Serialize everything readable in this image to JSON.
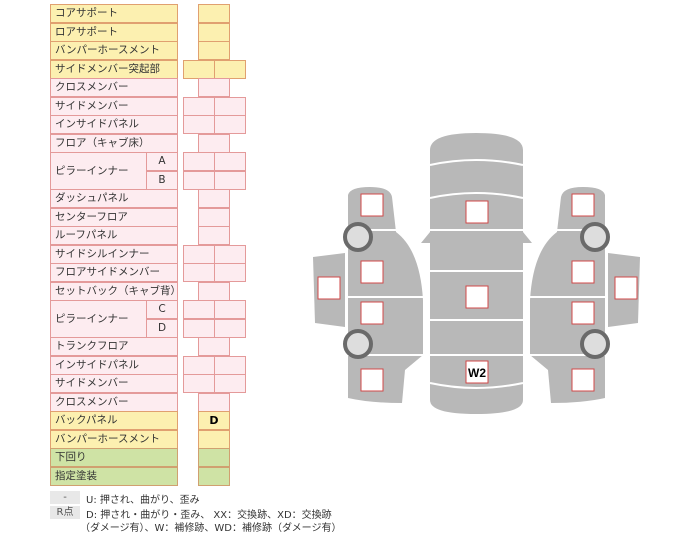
{
  "rows": [
    {
      "label": "コアサポート",
      "color": "y",
      "cols": 1
    },
    {
      "label": "ロアサポート",
      "color": "y",
      "cols": 1
    },
    {
      "label": "バンパーホースメント",
      "color": "y",
      "cols": 1
    },
    {
      "label": "サイドメンバー突起部",
      "color": "y",
      "cols": 2
    },
    {
      "label": "クロスメンバー",
      "color": "p",
      "cols": 1
    },
    {
      "label": "サイドメンバー",
      "color": "p",
      "cols": 2
    },
    {
      "label": "インサイドパネル",
      "color": "p",
      "cols": 2
    },
    {
      "label": "フロア（キャブ床）",
      "color": "p",
      "cols": 1
    },
    {
      "label": "ピラーインナー",
      "sub": "A",
      "color": "p",
      "cols": 2
    },
    {
      "label": "",
      "sub": "B",
      "color": "p",
      "cols": 2
    },
    {
      "label": "ダッシュパネル",
      "color": "p",
      "cols": 1
    },
    {
      "label": "センターフロア",
      "color": "p",
      "cols": 1
    },
    {
      "label": "ルーフパネル",
      "color": "p",
      "cols": 1
    },
    {
      "label": "サイドシルインナー",
      "color": "p",
      "cols": 2
    },
    {
      "label": "フロアサイドメンバー",
      "color": "p",
      "cols": 2
    },
    {
      "label": "セットバック（キャブ背）",
      "color": "p",
      "cols": 1
    },
    {
      "label": "ピラーインナー",
      "sub": "C",
      "color": "p",
      "cols": 2
    },
    {
      "label": "",
      "sub": "D",
      "color": "p",
      "cols": 2
    },
    {
      "label": "トランクフロア",
      "color": "p",
      "cols": 1
    },
    {
      "label": "インサイドパネル",
      "color": "p",
      "cols": 2
    },
    {
      "label": "サイドメンバー",
      "color": "p",
      "cols": 2
    },
    {
      "label": "クロスメンバー",
      "color": "p",
      "cols": 1
    },
    {
      "label": "バックパネル",
      "color": "y",
      "cols": 1,
      "value": "D"
    },
    {
      "label": "バンパーホースメント",
      "color": "y",
      "cols": 1
    },
    {
      "label": "下回り",
      "color": "g",
      "cols": 1
    },
    {
      "label": "指定塗装",
      "color": "g",
      "cols": 1
    }
  ],
  "legend": {
    "k1": "-",
    "t1": "U: 押され、曲がり、歪み",
    "k2": "R点",
    "t2": "D: 押され・曲がり・歪み、 XX：交換跡、XD：交換跡",
    "t3": "（ダメージ有）、W：補修跡、WD：補修跡（ダメージ有）"
  },
  "diagram": {
    "w2_label": "W2",
    "body_color": "#b8b8b8",
    "box_border": "#d04848"
  }
}
